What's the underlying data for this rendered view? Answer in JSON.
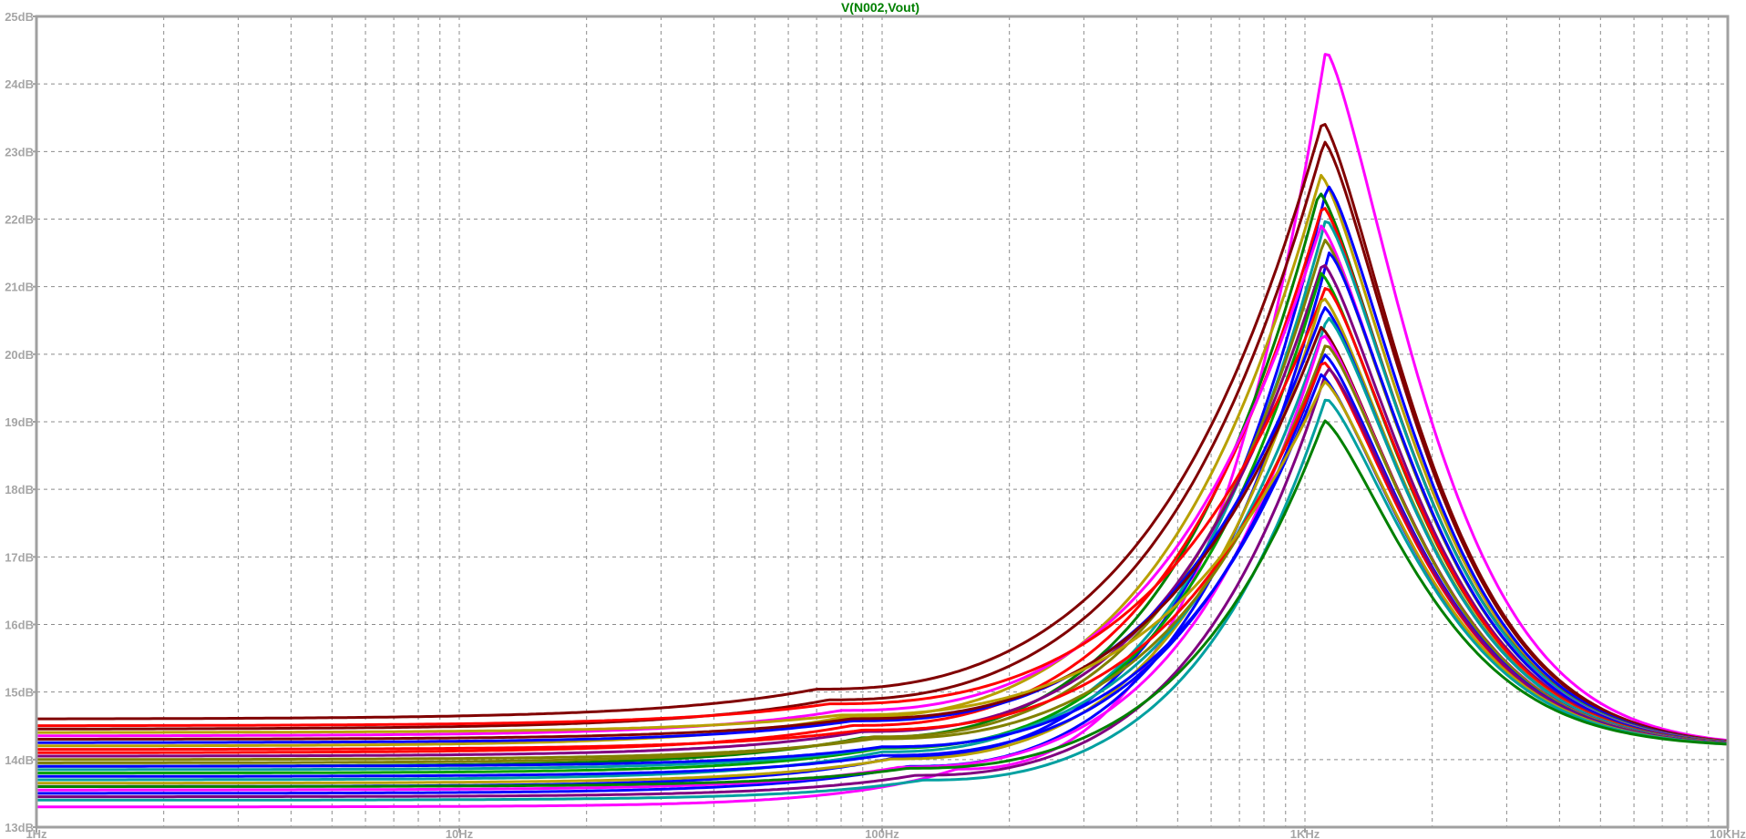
{
  "window": {
    "background": "#ffffff",
    "frame_color": "#a0a0a0",
    "grid_color": "#8c8c8c",
    "title_color": "#008000"
  },
  "chart_data": {
    "type": "line",
    "title": "V(N002,Vout)",
    "x_scale": "log",
    "xlim_hz": [
      1,
      10000
    ],
    "x_tick_labels": [
      {
        "value": 1,
        "label": "1Hz"
      },
      {
        "value": 10,
        "label": "10Hz"
      },
      {
        "value": 100,
        "label": "100Hz"
      },
      {
        "value": 1000,
        "label": "1KHz"
      },
      {
        "value": 10000,
        "label": "10KHz"
      }
    ],
    "ylim_db": [
      13,
      25
    ],
    "y_tick_labels": [
      {
        "value": 13,
        "label": "13dB"
      },
      {
        "value": 14,
        "label": "14dB"
      },
      {
        "value": 15,
        "label": "15dB"
      },
      {
        "value": 16,
        "label": "16dB"
      },
      {
        "value": 17,
        "label": "17dB"
      },
      {
        "value": 18,
        "label": "18dB"
      },
      {
        "value": 19,
        "label": "19dB"
      },
      {
        "value": 20,
        "label": "20dB"
      },
      {
        "value": 21,
        "label": "21dB"
      },
      {
        "value": 22,
        "label": "22dB"
      },
      {
        "value": 23,
        "label": "23dB"
      },
      {
        "value": 24,
        "label": "24dB"
      },
      {
        "value": 25,
        "label": "25dB"
      }
    ],
    "grid": true,
    "grid_style": "dashed",
    "high_freq_asymptote_db": 14.18,
    "note": "Monte Carlo family of magnitude responses; each series given by low-frequency gain, peak gain, peak frequency and rise start frequency",
    "series": [
      {
        "color": "#ff00ff",
        "low_db": 13.3,
        "peak_db": 24.5,
        "peak_hz": 1120,
        "knee_hz": 150,
        "width": 3
      },
      {
        "color": "#800000",
        "low_db": 14.6,
        "peak_db": 23.45,
        "peak_hz": 1100,
        "knee_hz": 70,
        "width": 3
      },
      {
        "color": "#800000",
        "low_db": 14.45,
        "peak_db": 23.15,
        "peak_hz": 1110,
        "knee_hz": 75,
        "width": 3
      },
      {
        "color": "#b8a000",
        "low_db": 14.2,
        "peak_db": 22.65,
        "peak_hz": 1090,
        "knee_hz": 80,
        "width": 3
      },
      {
        "color": "#0000ff",
        "low_db": 13.6,
        "peak_db": 22.5,
        "peak_hz": 1130,
        "knee_hz": 110,
        "width": 3
      },
      {
        "color": "#008000",
        "low_db": 13.9,
        "peak_db": 22.4,
        "peak_hz": 1080,
        "knee_hz": 90,
        "width": 3
      },
      {
        "color": "#ff0000",
        "low_db": 14.1,
        "peak_db": 22.2,
        "peak_hz": 1100,
        "knee_hz": 85,
        "width": 3
      },
      {
        "color": "#00a0a0",
        "low_db": 13.7,
        "peak_db": 22.0,
        "peak_hz": 1120,
        "knee_hz": 100,
        "width": 3
      },
      {
        "color": "#ff00ff",
        "low_db": 14.35,
        "peak_db": 21.9,
        "peak_hz": 1090,
        "knee_hz": 80,
        "width": 3
      },
      {
        "color": "#808000",
        "low_db": 13.95,
        "peak_db": 21.7,
        "peak_hz": 1110,
        "knee_hz": 95,
        "width": 3
      },
      {
        "color": "#0000ff",
        "low_db": 13.5,
        "peak_db": 21.5,
        "peak_hz": 1140,
        "knee_hz": 115,
        "width": 3
      },
      {
        "color": "#800080",
        "low_db": 14.05,
        "peak_db": 21.35,
        "peak_hz": 1100,
        "knee_hz": 90,
        "width": 3
      },
      {
        "color": "#00a000",
        "low_db": 13.8,
        "peak_db": 21.2,
        "peak_hz": 1090,
        "knee_hz": 100,
        "width": 3
      },
      {
        "color": "#ff0000",
        "low_db": 14.5,
        "peak_db": 21.0,
        "peak_hz": 1120,
        "knee_hz": 75,
        "width": 3
      },
      {
        "color": "#b8a000",
        "low_db": 13.65,
        "peak_db": 20.85,
        "peak_hz": 1100,
        "knee_hz": 105,
        "width": 3
      },
      {
        "color": "#0000ff",
        "low_db": 14.25,
        "peak_db": 20.7,
        "peak_hz": 1110,
        "knee_hz": 85,
        "width": 3
      },
      {
        "color": "#00a0a0",
        "low_db": 13.85,
        "peak_db": 20.55,
        "peak_hz": 1130,
        "knee_hz": 100,
        "width": 3
      },
      {
        "color": "#800000",
        "low_db": 14.3,
        "peak_db": 20.4,
        "peak_hz": 1090,
        "knee_hz": 85,
        "width": 3
      },
      {
        "color": "#ff00ff",
        "low_db": 13.55,
        "peak_db": 20.3,
        "peak_hz": 1100,
        "knee_hz": 110,
        "width": 3
      },
      {
        "color": "#808000",
        "low_db": 14.0,
        "peak_db": 20.15,
        "peak_hz": 1120,
        "knee_hz": 95,
        "width": 3
      },
      {
        "color": "#0000ff",
        "low_db": 13.75,
        "peak_db": 20.0,
        "peak_hz": 1110,
        "knee_hz": 100,
        "width": 3
      },
      {
        "color": "#ff0000",
        "low_db": 14.15,
        "peak_db": 19.9,
        "peak_hz": 1100,
        "knee_hz": 90,
        "width": 3
      },
      {
        "color": "#800080",
        "low_db": 13.45,
        "peak_db": 19.8,
        "peak_hz": 1130,
        "knee_hz": 120,
        "width": 3
      },
      {
        "color": "#0000ff",
        "low_db": 13.9,
        "peak_db": 19.7,
        "peak_hz": 1090,
        "knee_hz": 100,
        "width": 3
      },
      {
        "color": "#b8a000",
        "low_db": 14.4,
        "peak_db": 19.6,
        "peak_hz": 1110,
        "knee_hz": 80,
        "width": 3
      },
      {
        "color": "#00a0a0",
        "low_db": 13.4,
        "peak_db": 19.35,
        "peak_hz": 1120,
        "knee_hz": 125,
        "width": 3
      },
      {
        "color": "#008000",
        "low_db": 13.6,
        "peak_db": 19.02,
        "peak_hz": 1110,
        "knee_hz": 115,
        "width": 3
      }
    ]
  }
}
